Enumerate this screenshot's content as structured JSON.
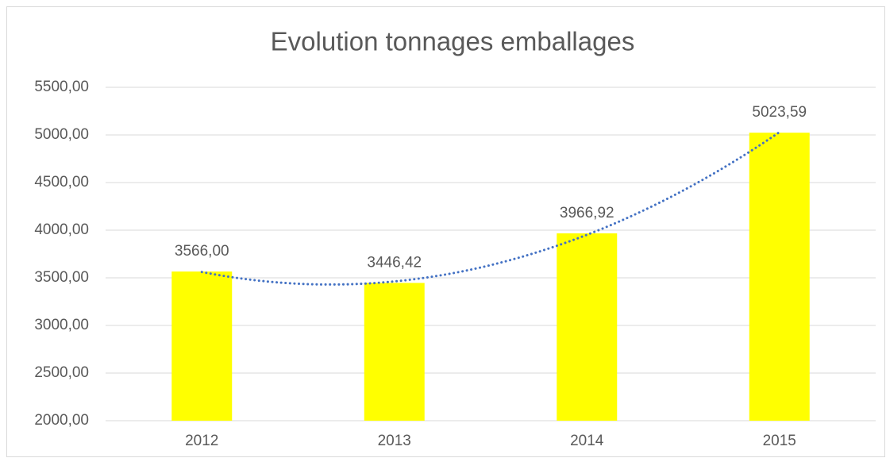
{
  "chart_data": {
    "type": "bar",
    "title": "Evolution tonnages emballages",
    "categories": [
      "2012",
      "2013",
      "2014",
      "2015"
    ],
    "values": [
      3566.0,
      3446.42,
      3966.92,
      5023.59
    ],
    "value_labels": [
      "3566,00",
      "3446,42",
      "3966,92",
      "5023,59"
    ],
    "color": "#ffff00",
    "ylim": [
      2000,
      5500
    ],
    "yticks": [
      {
        "value": 2000,
        "label": "2000,00"
      },
      {
        "value": 2500,
        "label": "2500,00"
      },
      {
        "value": 3000,
        "label": "3000,00"
      },
      {
        "value": 3500,
        "label": "3500,00"
      },
      {
        "value": 4000,
        "label": "4000,00"
      },
      {
        "value": 4500,
        "label": "4500,00"
      },
      {
        "value": 5000,
        "label": "5000,00"
      },
      {
        "value": 5500,
        "label": "5500,00"
      }
    ],
    "grid": true,
    "trendline": {
      "type": "polynomial",
      "order": 2,
      "color": "#4472c4"
    }
  }
}
